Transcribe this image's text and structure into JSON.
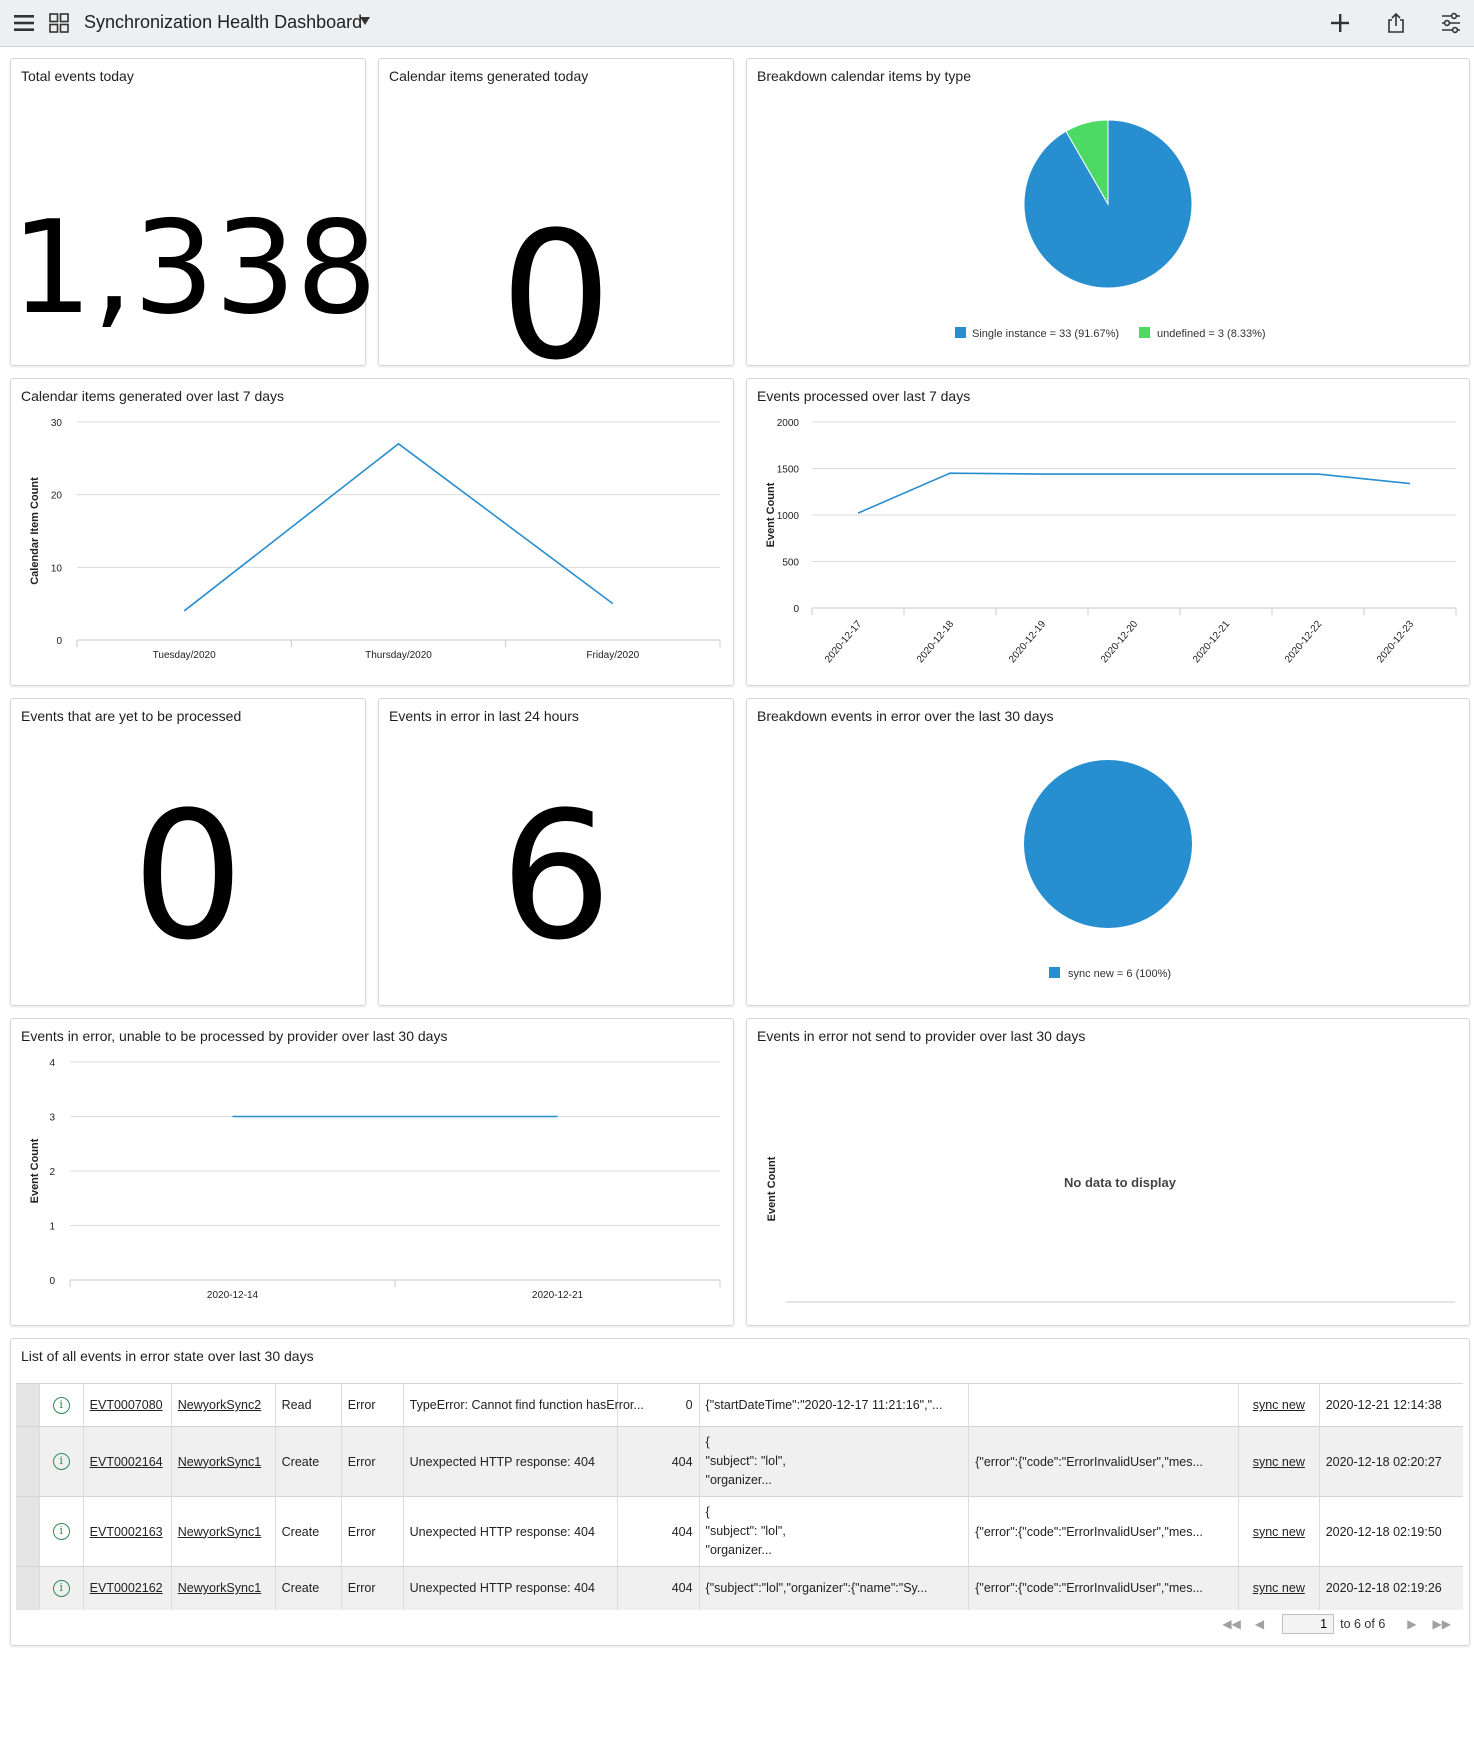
{
  "header": {
    "title": "Synchronization Health Dashboard"
  },
  "widgets": {
    "total_events": {
      "title": "Total events today",
      "value": "1,338"
    },
    "calendar_generated": {
      "title": "Calendar items generated today",
      "value": "0"
    },
    "breakdown_calendar": {
      "title": "Breakdown calendar items by type",
      "legend": [
        "Single instance = 33 (91.67%)",
        "undefined = 3 (8.33%)"
      ]
    },
    "calendar_7days": {
      "title": "Calendar items generated over last 7 days"
    },
    "events_7days": {
      "title": "Events processed over last 7 days"
    },
    "yet_to_process": {
      "title": "Events that are yet to be processed",
      "value": "0"
    },
    "error_24h": {
      "title": "Events in error in last 24 hours",
      "value": "6"
    },
    "breakdown_error": {
      "title": "Breakdown events in error over the last 30 days",
      "legend": [
        "sync new = 6 (100%)"
      ]
    },
    "error_provider": {
      "title": "Events in error, unable to be processed by provider over last 30 days"
    },
    "error_not_sent": {
      "title": "Events in error not send to provider over last 30 days",
      "ylabel": "Event Count",
      "empty": "No data to display"
    }
  },
  "table": {
    "title": "List of all events in error state over last 30 days",
    "rows": [
      {
        "number": "EVT0007080",
        "source": "NewyorkSync2",
        "action": "Read",
        "state": "Error",
        "message": "TypeError: Cannot find function hasError...",
        "code": "0",
        "payload": [
          "{\"startDateTime\":\"2020-12-17 11:21:16\",\"..."
        ],
        "response": "",
        "topic": "sync new",
        "updated": "2020-12-21 12:14:38"
      },
      {
        "number": "EVT0002164",
        "source": "NewyorkSync1",
        "action": "Create",
        "state": "Error",
        "message": "Unexpected HTTP response: 404",
        "code": "404",
        "payload": [
          "{",
          "\"subject\": \"lol\",",
          "\"organizer..."
        ],
        "response": "{\"error\":{\"code\":\"ErrorInvalidUser\",\"mes...",
        "topic": "sync new",
        "updated": "2020-12-18 02:20:27"
      },
      {
        "number": "EVT0002163",
        "source": "NewyorkSync1",
        "action": "Create",
        "state": "Error",
        "message": "Unexpected HTTP response: 404",
        "code": "404",
        "payload": [
          "{",
          "\"subject\": \"lol\",",
          "\"organizer..."
        ],
        "response": "{\"error\":{\"code\":\"ErrorInvalidUser\",\"mes...",
        "topic": "sync new",
        "updated": "2020-12-18 02:19:50"
      },
      {
        "number": "EVT0002162",
        "source": "NewyorkSync1",
        "action": "Create",
        "state": "Error",
        "message": "Unexpected HTTP response: 404",
        "code": "404",
        "payload": [
          "{\"subject\":\"lol\",\"organizer\":{\"name\":\"Sy..."
        ],
        "response": "{\"error\":{\"code\":\"ErrorInvalidUser\",\"mes...",
        "topic": "sync new",
        "updated": "2020-12-18 02:19:26"
      }
    ],
    "pagination": {
      "page": "1",
      "range": "to 6 of 6"
    }
  },
  "colors": {
    "primary": "#278ecf",
    "secondary": "#4cd964",
    "info_icon": "#2e8b57"
  },
  "icons": {
    "menu": "hamburger-icon",
    "dashboards": "grid-icon",
    "add": "plus-icon",
    "share": "share-icon",
    "settings": "sliders-icon"
  },
  "chart_data": [
    {
      "type": "pie",
      "title": "Breakdown calendar items by type",
      "labels": [
        "Single instance",
        "undefined"
      ],
      "values": [
        33,
        3
      ],
      "colors": [
        "#278ecf",
        "#4cd964"
      ],
      "legend_position": "bottom"
    },
    {
      "type": "line",
      "title": "Calendar items generated over last 7 days",
      "ylabel": "Calendar Item Count",
      "categories": [
        "Tuesday/2020",
        "Thursday/2020",
        "Friday/2020"
      ],
      "series": [
        {
          "values": [
            4,
            27,
            5
          ]
        }
      ],
      "ylim": [
        0,
        30
      ],
      "yticks": [
        0,
        10,
        20,
        30
      ],
      "grid": true
    },
    {
      "type": "line",
      "title": "Events processed over last 7 days",
      "ylabel": "Event Count",
      "categories": [
        "2020-12-17",
        "2020-12-18",
        "2020-12-19",
        "2020-12-20",
        "2020-12-21",
        "2020-12-22",
        "2020-12-23"
      ],
      "series": [
        {
          "values": [
            1020,
            1450,
            1440,
            1440,
            1440,
            1440,
            1338
          ]
        }
      ],
      "ylim": [
        0,
        2000
      ],
      "yticks": [
        0,
        500,
        1000,
        1500,
        2000
      ],
      "grid": true
    },
    {
      "type": "pie",
      "title": "Breakdown events in error over the last 30 days",
      "labels": [
        "sync new"
      ],
      "values": [
        6
      ],
      "colors": [
        "#278ecf"
      ],
      "legend_position": "bottom"
    },
    {
      "type": "line",
      "title": "Events in error, unable to be processed by provider over last 30 days",
      "ylabel": "Event Count",
      "categories": [
        "2020-12-14",
        "2020-12-21"
      ],
      "series": [
        {
          "values": [
            3,
            3
          ]
        }
      ],
      "ylim": [
        0,
        4
      ],
      "yticks": [
        0,
        1,
        2,
        3,
        4
      ],
      "grid": true
    }
  ]
}
